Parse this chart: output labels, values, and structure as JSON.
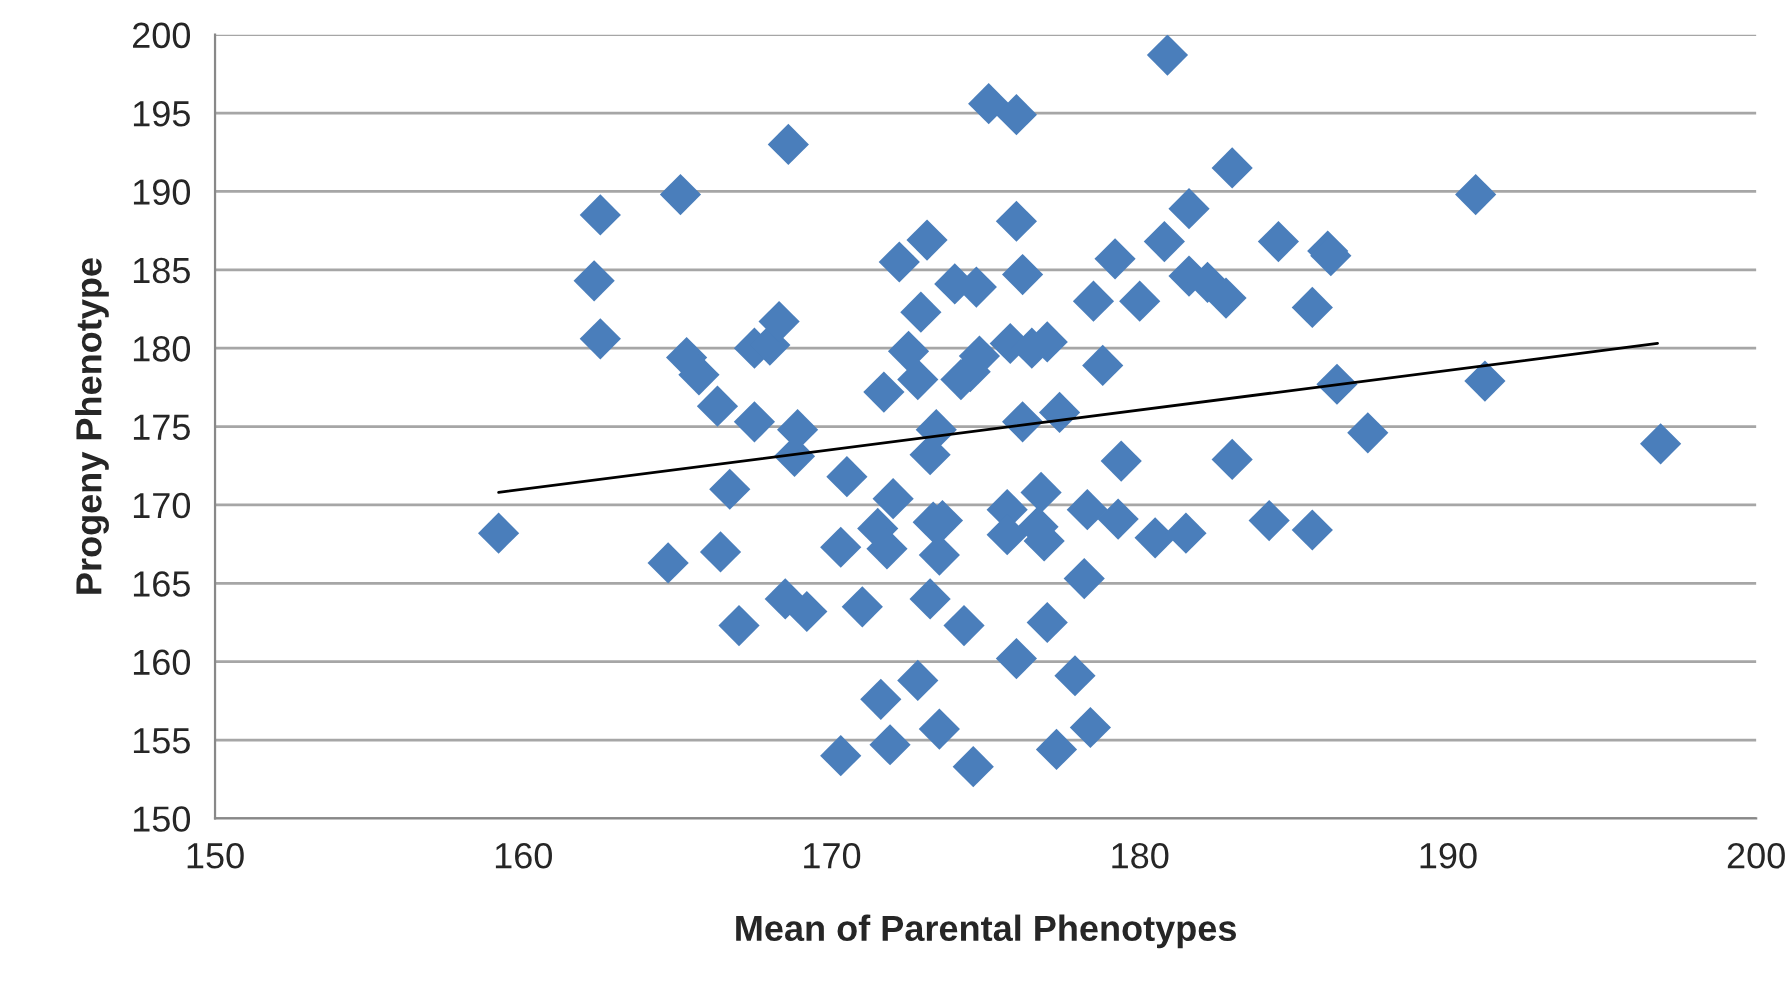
{
  "chart_data": {
    "type": "scatter",
    "xlabel": "Mean of Parental Phenotypes",
    "ylabel": "Progeny Phenotype",
    "xlim": [
      150,
      200
    ],
    "xticks": [
      150,
      160,
      170,
      180,
      190,
      200
    ],
    "ylim": [
      150,
      200
    ],
    "yticks": [
      150,
      155,
      160,
      165,
      170,
      175,
      180,
      185,
      190,
      195,
      200
    ],
    "grid": "y",
    "series": [
      {
        "marker": "diamond",
        "color": "#4a7ebb",
        "x": [
          159.2,
          162.3,
          162.5,
          162.5,
          165.1,
          165.3,
          165.7,
          166.3,
          166.4,
          164.7,
          166.7,
          167.0,
          167.5,
          167.5,
          168.0,
          168.3,
          168.6,
          168.5,
          168.8,
          168.9,
          169.2,
          170.3,
          170.3,
          170.5,
          171.0,
          171.5,
          171.7,
          171.6,
          172.0,
          171.8,
          171.9,
          172.2,
          172.5,
          172.8,
          172.8,
          172.9,
          173.1,
          173.2,
          173.2,
          173.4,
          173.3,
          173.5,
          173.5,
          173.6,
          174.0,
          174.2,
          174.3,
          174.5,
          174.7,
          174.8,
          174.6,
          175.1,
          175.7,
          175.7,
          175.8,
          176.0,
          176.0,
          176.0,
          176.2,
          176.2,
          176.5,
          176.7,
          176.8,
          176.9,
          177.0,
          177.0,
          177.4,
          177.3,
          177.9,
          178.2,
          178.3,
          178.4,
          178.5,
          178.8,
          179.2,
          179.4,
          179.3,
          180.0,
          180.5,
          180.8,
          180.9,
          181.5,
          181.6,
          181.6,
          182.2,
          182.8,
          183.0,
          183.0,
          184.2,
          184.5,
          185.6,
          185.6,
          186.1,
          186.2,
          186.4,
          187.4,
          190.9,
          191.2,
          196.9
        ],
        "values": [
          168.2,
          184.3,
          188.5,
          180.6,
          189.8,
          179.4,
          178.3,
          176.3,
          167.0,
          166.3,
          171.0,
          162.3,
          175.3,
          180.0,
          180.2,
          181.7,
          193.0,
          164.0,
          173.1,
          174.8,
          163.2,
          154.0,
          167.3,
          171.8,
          163.5,
          168.5,
          177.2,
          157.6,
          170.4,
          167.2,
          154.7,
          185.5,
          179.8,
          178.0,
          158.8,
          182.3,
          186.9,
          173.2,
          164.0,
          174.8,
          168.9,
          155.7,
          166.8,
          169.0,
          184.1,
          178.0,
          162.3,
          178.5,
          183.9,
          179.5,
          153.3,
          195.6,
          169.7,
          168.1,
          180.3,
          194.9,
          188.1,
          160.2,
          184.7,
          175.3,
          180.0,
          168.6,
          170.8,
          167.7,
          180.4,
          162.5,
          175.9,
          154.4,
          159.1,
          165.3,
          169.7,
          155.8,
          183.0,
          178.9,
          185.7,
          172.8,
          169.1,
          183.0,
          167.9,
          186.8,
          198.7,
          168.2,
          188.9,
          184.6,
          184.2,
          183.2,
          191.5,
          172.9,
          169.0,
          186.8,
          182.6,
          168.4,
          186.2,
          185.9,
          177.7,
          174.6,
          189.8,
          177.9,
          173.9
        ]
      },
      {
        "type": "line",
        "color": "#000000",
        "x": [
          159.2,
          196.8
        ],
        "values": [
          170.8,
          180.3
        ]
      }
    ]
  }
}
